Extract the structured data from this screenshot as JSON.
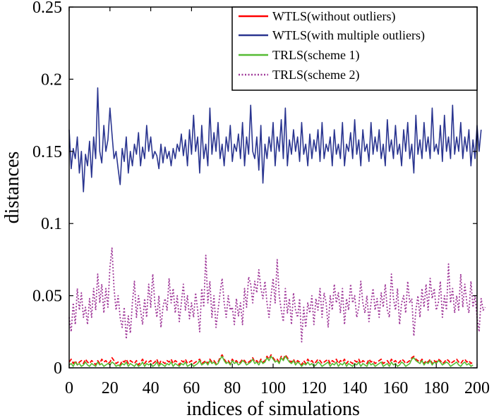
{
  "chart_data": {
    "type": "line",
    "title": "",
    "xlabel": "indices of simulations",
    "ylabel": "distances",
    "xlim": [
      0,
      200
    ],
    "ylim": [
      0,
      0.25
    ],
    "x_ticks": [
      0,
      20,
      40,
      60,
      80,
      100,
      120,
      140,
      160,
      180,
      200
    ],
    "x_tick_labels": [
      "0",
      "20",
      "40",
      "60",
      "80",
      "100",
      "120",
      "140",
      "160",
      "180",
      "200"
    ],
    "y_ticks": [
      0,
      0.05,
      0.1,
      0.15,
      0.2,
      0.25
    ],
    "y_tick_labels": [
      "0",
      "0.05",
      "0.1",
      "0.15",
      "0.2",
      "0.25"
    ],
    "grid": false,
    "legend_position": "top-right",
    "x_start": 0,
    "x_step": 1,
    "series": [
      {
        "name": "WTLS(without outliers)",
        "color": "#ff0000",
        "dash": "dashed",
        "values": [
          0.004,
          0.006,
          0.003,
          0.005,
          0.002,
          0.004,
          0.005,
          0.003,
          0.006,
          0.004,
          0.003,
          0.005,
          0.004,
          0.002,
          0.005,
          0.003,
          0.006,
          0.004,
          0.005,
          0.003,
          0.004,
          0.007,
          0.005,
          0.003,
          0.004,
          0.002,
          0.005,
          0.004,
          0.006,
          0.003,
          0.005,
          0.004,
          0.003,
          0.005,
          0.002,
          0.004,
          0.006,
          0.003,
          0.005,
          0.004,
          0.005,
          0.003,
          0.004,
          0.006,
          0.002,
          0.005,
          0.004,
          0.003,
          0.005,
          0.004,
          0.006,
          0.003,
          0.005,
          0.004,
          0.002,
          0.005,
          0.004,
          0.006,
          0.003,
          0.004,
          0.005,
          0.003,
          0.004,
          0.005,
          0.006,
          0.003,
          0.004,
          0.005,
          0.003,
          0.006,
          0.004,
          0.005,
          0.003,
          0.004,
          0.007,
          0.009,
          0.006,
          0.004,
          0.005,
          0.003,
          0.006,
          0.004,
          0.005,
          0.003,
          0.004,
          0.006,
          0.005,
          0.003,
          0.004,
          0.005,
          0.007,
          0.004,
          0.005,
          0.003,
          0.006,
          0.004,
          0.005,
          0.008,
          0.006,
          0.009,
          0.007,
          0.005,
          0.006,
          0.004,
          0.008,
          0.006,
          0.009,
          0.007,
          0.005,
          0.004,
          0.006,
          0.003,
          0.005,
          0.004,
          0.002,
          0.005,
          0.003,
          0.006,
          0.004,
          0.005,
          0.003,
          0.004,
          0.006,
          0.005,
          0.003,
          0.004,
          0.005,
          0.006,
          0.003,
          0.005,
          0.004,
          0.006,
          0.003,
          0.005,
          0.004,
          0.006,
          0.003,
          0.005,
          0.004,
          0.003,
          0.005,
          0.004,
          0.006,
          0.003,
          0.005,
          0.004,
          0.003,
          0.006,
          0.004,
          0.005,
          0.003,
          0.004,
          0.005,
          0.006,
          0.003,
          0.004,
          0.005,
          0.003,
          0.006,
          0.004,
          0.005,
          0.003,
          0.004,
          0.006,
          0.005,
          0.003,
          0.004,
          0.005,
          0.007,
          0.008,
          0.006,
          0.005,
          0.004,
          0.006,
          0.003,
          0.005,
          0.004,
          0.006,
          0.003,
          0.005,
          0.004,
          0.006,
          0.005,
          0.003,
          0.004,
          0.006,
          0.005,
          0.003,
          0.004,
          0.005,
          0.006,
          0.004,
          0.003,
          0.005,
          0.006,
          0.004,
          0.005,
          0.003,
          0.004
        ]
      },
      {
        "name": "WTLS(with multiple outliers)",
        "color": "#2a3590",
        "dash": "solid",
        "values": [
          0.165,
          0.138,
          0.152,
          0.145,
          0.16,
          0.135,
          0.15,
          0.122,
          0.148,
          0.14,
          0.157,
          0.132,
          0.16,
          0.145,
          0.194,
          0.15,
          0.142,
          0.168,
          0.15,
          0.158,
          0.18,
          0.162,
          0.145,
          0.15,
          0.138,
          0.127,
          0.152,
          0.143,
          0.16,
          0.135,
          0.15,
          0.14,
          0.155,
          0.148,
          0.163,
          0.14,
          0.153,
          0.145,
          0.168,
          0.15,
          0.16,
          0.145,
          0.15,
          0.147,
          0.138,
          0.155,
          0.142,
          0.153,
          0.145,
          0.15,
          0.14,
          0.152,
          0.145,
          0.155,
          0.15,
          0.162,
          0.147,
          0.158,
          0.14,
          0.165,
          0.148,
          0.175,
          0.15,
          0.16,
          0.135,
          0.168,
          0.145,
          0.155,
          0.14,
          0.18,
          0.148,
          0.163,
          0.15,
          0.17,
          0.145,
          0.155,
          0.14,
          0.16,
          0.15,
          0.168,
          0.143,
          0.155,
          0.15,
          0.162,
          0.145,
          0.17,
          0.14,
          0.16,
          0.148,
          0.182,
          0.15,
          0.145,
          0.16,
          0.137,
          0.168,
          0.128,
          0.155,
          0.145,
          0.16,
          0.15,
          0.17,
          0.14,
          0.16,
          0.15,
          0.172,
          0.145,
          0.18,
          0.14,
          0.158,
          0.148,
          0.165,
          0.15,
          0.16,
          0.143,
          0.17,
          0.148,
          0.155,
          0.14,
          0.162,
          0.145,
          0.158,
          0.15,
          0.165,
          0.143,
          0.17,
          0.145,
          0.155,
          0.15,
          0.16,
          0.14,
          0.165,
          0.148,
          0.155,
          0.145,
          0.17,
          0.14,
          0.155,
          0.15,
          0.163,
          0.145,
          0.172,
          0.148,
          0.158,
          0.14,
          0.165,
          0.15,
          0.155,
          0.143,
          0.17,
          0.148,
          0.16,
          0.15,
          0.165,
          0.145,
          0.155,
          0.14,
          0.172,
          0.15,
          0.158,
          0.145,
          0.168,
          0.148,
          0.155,
          0.14,
          0.165,
          0.15,
          0.17,
          0.145,
          0.155,
          0.135,
          0.175,
          0.148,
          0.158,
          0.145,
          0.17,
          0.15,
          0.16,
          0.145,
          0.18,
          0.15,
          0.155,
          0.148,
          0.168,
          0.143,
          0.175,
          0.15,
          0.16,
          0.145,
          0.182,
          0.148,
          0.16,
          0.15,
          0.17,
          0.145,
          0.16,
          0.15,
          0.165,
          0.14,
          0.158,
          0.145,
          0.168,
          0.15,
          0.165
        ]
      },
      {
        "name": "TRLS(scheme 1)",
        "color": "#55bb33",
        "dash": "solid",
        "values": [
          0.002,
          0.003,
          0.001,
          0.004,
          0.002,
          0.003,
          0.001,
          0.002,
          0.004,
          0.002,
          0.001,
          0.003,
          0.002,
          0.001,
          0.004,
          0.002,
          0.003,
          0.001,
          0.002,
          0.003,
          0.002,
          0.004,
          0.003,
          0.001,
          0.002,
          0.001,
          0.003,
          0.002,
          0.004,
          0.001,
          0.003,
          0.002,
          0.001,
          0.003,
          0.001,
          0.002,
          0.004,
          0.001,
          0.003,
          0.002,
          0.003,
          0.001,
          0.002,
          0.004,
          0.001,
          0.003,
          0.002,
          0.001,
          0.003,
          0.002,
          0.004,
          0.001,
          0.003,
          0.002,
          0.001,
          0.003,
          0.002,
          0.004,
          0.001,
          0.002,
          0.003,
          0.001,
          0.002,
          0.003,
          0.005,
          0.002,
          0.003,
          0.004,
          0.002,
          0.005,
          0.003,
          0.004,
          0.002,
          0.003,
          0.006,
          0.008,
          0.005,
          0.003,
          0.004,
          0.002,
          0.005,
          0.003,
          0.004,
          0.002,
          0.003,
          0.005,
          0.004,
          0.002,
          0.003,
          0.004,
          0.006,
          0.003,
          0.004,
          0.002,
          0.005,
          0.003,
          0.004,
          0.007,
          0.005,
          0.008,
          0.006,
          0.004,
          0.005,
          0.003,
          0.007,
          0.005,
          0.008,
          0.006,
          0.004,
          0.003,
          0.005,
          0.002,
          0.004,
          0.003,
          0.001,
          0.003,
          0.002,
          0.004,
          0.002,
          0.003,
          0.001,
          0.002,
          0.004,
          0.003,
          0.001,
          0.002,
          0.003,
          0.004,
          0.001,
          0.003,
          0.002,
          0.004,
          0.001,
          0.003,
          0.002,
          0.004,
          0.001,
          0.003,
          0.002,
          0.001,
          0.003,
          0.002,
          0.004,
          0.001,
          0.003,
          0.002,
          0.001,
          0.004,
          0.002,
          0.003,
          0.001,
          0.002,
          0.003,
          0.004,
          0.001,
          0.002,
          0.003,
          0.001,
          0.004,
          0.002,
          0.003,
          0.001,
          0.002,
          0.004,
          0.003,
          0.001,
          0.002,
          0.003,
          0.006,
          0.007,
          0.005,
          0.004,
          0.003,
          0.005,
          0.002,
          0.004,
          0.003,
          0.005,
          0.002,
          0.004,
          0.003,
          0.005,
          0.004,
          0.002,
          0.003,
          0.004,
          0.003,
          0.001,
          0.002,
          0.003,
          0.004,
          0.002,
          0.001,
          0.003,
          0.004,
          0.002,
          0.003,
          0.001,
          0.002
        ]
      },
      {
        "name": "TRLS(scheme 2)",
        "color": "#a03a9a",
        "dash": "dotted",
        "values": [
          0.035,
          0.025,
          0.045,
          0.03,
          0.055,
          0.04,
          0.052,
          0.035,
          0.042,
          0.03,
          0.048,
          0.035,
          0.055,
          0.04,
          0.065,
          0.045,
          0.058,
          0.038,
          0.055,
          0.042,
          0.07,
          0.083,
          0.055,
          0.04,
          0.05,
          0.035,
          0.028,
          0.042,
          0.02,
          0.036,
          0.024,
          0.045,
          0.06,
          0.035,
          0.05,
          0.04,
          0.03,
          0.048,
          0.035,
          0.058,
          0.042,
          0.065,
          0.045,
          0.035,
          0.05,
          0.028,
          0.042,
          0.048,
          0.04,
          0.062,
          0.045,
          0.055,
          0.038,
          0.05,
          0.032,
          0.045,
          0.058,
          0.04,
          0.05,
          0.034,
          0.045,
          0.035,
          0.052,
          0.04,
          0.025,
          0.055,
          0.042,
          0.078,
          0.045,
          0.06,
          0.035,
          0.05,
          0.028,
          0.04,
          0.052,
          0.062,
          0.045,
          0.035,
          0.05,
          0.04,
          0.042,
          0.03,
          0.048,
          0.036,
          0.045,
          0.03,
          0.055,
          0.042,
          0.063,
          0.058,
          0.045,
          0.06,
          0.052,
          0.068,
          0.055,
          0.048,
          0.06,
          0.045,
          0.035,
          0.05,
          0.062,
          0.045,
          0.075,
          0.05,
          0.04,
          0.032,
          0.055,
          0.038,
          0.048,
          0.03,
          0.052,
          0.04,
          0.035,
          0.048,
          0.018,
          0.042,
          0.028,
          0.045,
          0.038,
          0.05,
          0.03,
          0.048,
          0.04,
          0.055,
          0.035,
          0.052,
          0.045,
          0.028,
          0.05,
          0.04,
          0.058,
          0.045,
          0.052,
          0.038,
          0.055,
          0.03,
          0.048,
          0.04,
          0.058,
          0.045,
          0.05,
          0.035,
          0.042,
          0.06,
          0.045,
          0.038,
          0.05,
          0.032,
          0.045,
          0.055,
          0.04,
          0.048,
          0.035,
          0.052,
          0.042,
          0.058,
          0.04,
          0.035,
          0.065,
          0.048,
          0.04,
          0.055,
          0.03,
          0.045,
          0.05,
          0.038,
          0.06,
          0.045,
          0.048,
          0.022,
          0.04,
          0.05,
          0.035,
          0.055,
          0.042,
          0.058,
          0.04,
          0.062,
          0.048,
          0.055,
          0.04,
          0.045,
          0.06,
          0.035,
          0.05,
          0.04,
          0.072,
          0.045,
          0.055,
          0.038,
          0.05,
          0.04,
          0.065,
          0.042,
          0.058,
          0.045,
          0.038,
          0.06,
          0.042,
          0.05,
          0.035,
          0.025,
          0.048,
          0.04,
          0.042
        ]
      }
    ]
  }
}
